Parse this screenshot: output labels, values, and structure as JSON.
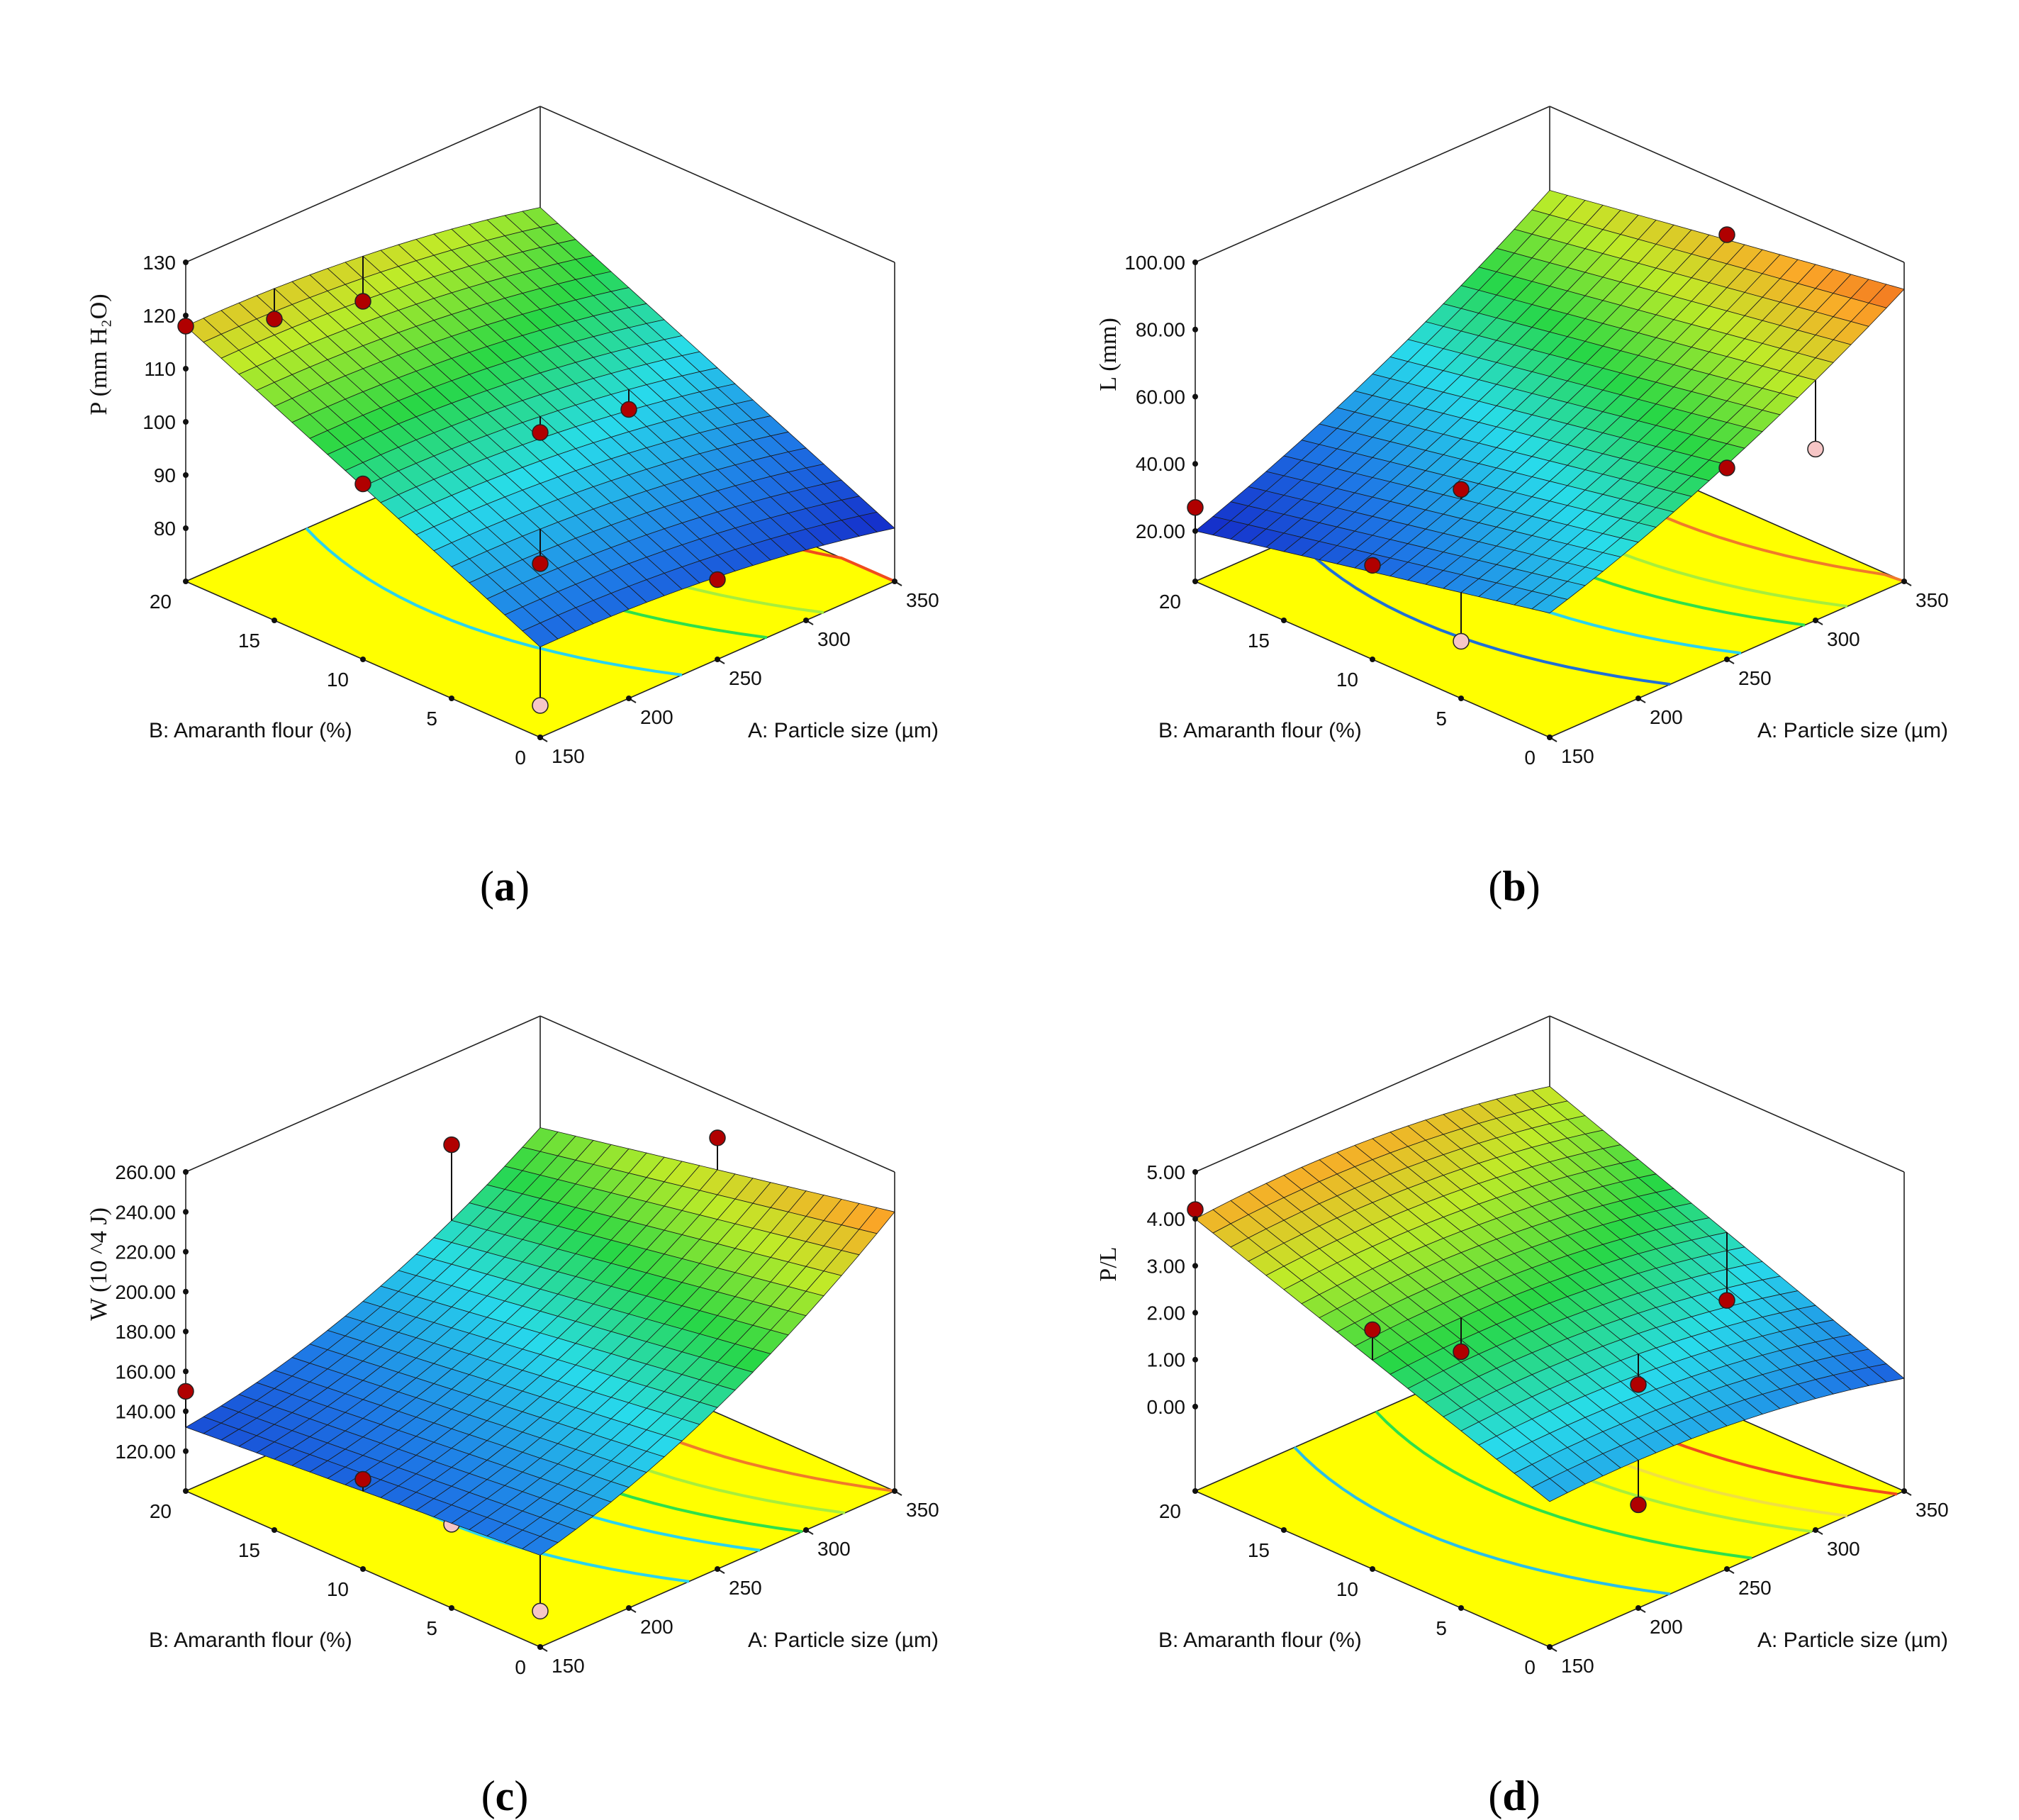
{
  "chart_data": [
    {
      "type": "surface3d",
      "panel": "a",
      "caption": "a",
      "zlabel": "P (mm H₂O)",
      "xlabel": "A: Particle size (µm)",
      "ylabel": "B: Amaranth flour (%)",
      "xlim": [
        150,
        350
      ],
      "ylim": [
        0,
        20
      ],
      "zlim": [
        80,
        130
      ],
      "x_ticks": [
        "150",
        "200",
        "250",
        "300",
        "350"
      ],
      "y_ticks": [
        "0",
        "5",
        "10",
        "15",
        "20"
      ],
      "z_ticks": [
        "80",
        "90",
        "100",
        "110",
        "120",
        "130"
      ],
      "z_floor": 70,
      "surface_corners": {
        "x150_y0": 87,
        "x350_y0": 80,
        "x150_y20": 118,
        "x350_y20": 111
      },
      "curvature": 2,
      "points": [
        {
          "x": 150,
          "y": 20,
          "z": 118,
          "above": true
        },
        {
          "x": 200,
          "y": 20,
          "z": 112,
          "above": true
        },
        {
          "x": 250,
          "y": 20,
          "z": 108,
          "above": true
        },
        {
          "x": 150,
          "y": 10,
          "z": 103,
          "above": true
        },
        {
          "x": 250,
          "y": 10,
          "z": 98,
          "above": true
        },
        {
          "x": 300,
          "y": 10,
          "z": 95,
          "above": true
        },
        {
          "x": 200,
          "y": 5,
          "z": 88,
          "above": true
        },
        {
          "x": 250,
          "y": 0,
          "z": 85,
          "above": true
        },
        {
          "x": 150,
          "y": 0,
          "z": 76,
          "above": false
        }
      ],
      "contours": [
        {
          "frac": 0.28,
          "color": "#29d4ee"
        },
        {
          "frac": 0.52,
          "color": "#2ee04a"
        },
        {
          "frac": 0.68,
          "color": "#a7ee3c"
        },
        {
          "frac": 0.95,
          "color": "#f04c1c"
        }
      ]
    },
    {
      "type": "surface3d",
      "panel": "b",
      "caption": "b",
      "zlabel": "L (mm)",
      "xlabel": "A: Particle size (µm)",
      "ylabel": "B: Amaranth flour (%)",
      "xlim": [
        150,
        350
      ],
      "ylim": [
        0,
        20
      ],
      "zlim": [
        20,
        100
      ],
      "x_ticks": [
        "150",
        "200",
        "250",
        "300",
        "350"
      ],
      "y_ticks": [
        "0",
        "5",
        "10",
        "15",
        "20"
      ],
      "z_ticks": [
        "20.00",
        "40.00",
        "60.00",
        "80.00",
        "100.00"
      ],
      "z_tick_values": [
        20,
        40,
        60,
        80,
        100
      ],
      "z_floor": 5,
      "surface_corners": {
        "x150_y0": 42,
        "x350_y0": 92,
        "x150_y20": 20,
        "x350_y20": 75
      },
      "curvature": -4,
      "points": [
        {
          "x": 150,
          "y": 20,
          "z": 27,
          "above": true
        },
        {
          "x": 150,
          "y": 10,
          "z": 33,
          "above": true
        },
        {
          "x": 200,
          "y": 10,
          "z": 44,
          "above": true
        },
        {
          "x": 250,
          "y": 0,
          "z": 62,
          "above": true
        },
        {
          "x": 350,
          "y": 10,
          "z": 85,
          "above": true
        },
        {
          "x": 150,
          "y": 5,
          "z": 22,
          "above": false
        },
        {
          "x": 250,
          "y": 5,
          "z": 42,
          "above": false
        },
        {
          "x": 300,
          "y": 0,
          "z": 56,
          "above": false
        }
      ],
      "contours": [
        {
          "frac": 0.22,
          "color": "#1f6fd6"
        },
        {
          "frac": 0.42,
          "color": "#29d4ee"
        },
        {
          "frac": 0.6,
          "color": "#2ee04a"
        },
        {
          "frac": 0.72,
          "color": "#a7ee3c"
        },
        {
          "frac": 0.9,
          "color": "#f07a2a"
        }
      ]
    },
    {
      "type": "surface3d",
      "panel": "c",
      "caption": "c",
      "zlabel": "W (10 ^4 J)",
      "xlabel": "A: Particle size (µm)",
      "ylabel": "B: Amaranth flour (%)",
      "xlim": [
        150,
        350
      ],
      "ylim": [
        0,
        20
      ],
      "zlim": [
        120,
        260
      ],
      "x_ticks": [
        "150",
        "200",
        "250",
        "300",
        "350"
      ],
      "y_ticks": [
        "0",
        "5",
        "10",
        "15",
        "20"
      ],
      "z_ticks": [
        "120.00",
        "140.00",
        "160.00",
        "180.00",
        "200.00",
        "220.00",
        "240.00",
        "260.00"
      ],
      "z_tick_values": [
        120,
        140,
        160,
        180,
        200,
        220,
        240,
        260
      ],
      "z_floor": 100,
      "surface_corners": {
        "x150_y0": 146,
        "x350_y0": 240,
        "x150_y20": 132,
        "x350_y20": 204
      },
      "curvature": -12,
      "points": [
        {
          "x": 150,
          "y": 20,
          "z": 150,
          "above": true
        },
        {
          "x": 150,
          "y": 10,
          "z": 145,
          "above": true
        },
        {
          "x": 300,
          "y": 20,
          "z": 215,
          "above": true
        },
        {
          "x": 350,
          "y": 10,
          "z": 238,
          "above": true
        },
        {
          "x": 150,
          "y": 5,
          "z": 142,
          "above": false
        },
        {
          "x": 150,
          "y": 0,
          "z": 118,
          "above": false
        }
      ],
      "contours": [
        {
          "frac": 0.3,
          "color": "#29d4ee"
        },
        {
          "frac": 0.5,
          "color": "#29d4ee"
        },
        {
          "frac": 0.62,
          "color": "#2ee04a"
        },
        {
          "frac": 0.74,
          "color": "#a7ee3c"
        },
        {
          "frac": 0.88,
          "color": "#f07a2a"
        }
      ]
    },
    {
      "type": "surface3d",
      "panel": "d",
      "caption": "d",
      "zlabel": "P/L",
      "xlabel": "A: Particle size (µm)",
      "ylabel": "B: Amaranth flour (%)",
      "xlim": [
        150,
        350
      ],
      "ylim": [
        0,
        20
      ],
      "zlim": [
        0,
        5
      ],
      "x_ticks": [
        "150",
        "200",
        "250",
        "300",
        "350"
      ],
      "y_ticks": [
        "0",
        "5",
        "10",
        "15",
        "20"
      ],
      "z_ticks": [
        "0.00",
        "1.00",
        "2.00",
        "3.00",
        "4.00",
        "5.00"
      ],
      "z_tick_values": [
        0,
        1,
        2,
        3,
        4,
        5
      ],
      "z_floor": -1.8,
      "surface_corners": {
        "x150_y0": 1.3,
        "x350_y0": 0.6,
        "x150_y20": 4.0,
        "x350_y20": 3.5
      },
      "curvature": 0.3,
      "points": [
        {
          "x": 150,
          "y": 20,
          "z": 4.2,
          "above": true
        },
        {
          "x": 150,
          "y": 10,
          "z": 3.3,
          "above": true
        },
        {
          "x": 200,
          "y": 10,
          "z": 2.0,
          "above": true
        },
        {
          "x": 250,
          "y": 5,
          "z": 1.3,
          "above": true
        },
        {
          "x": 350,
          "y": 10,
          "z": 0.6,
          "above": true
        },
        {
          "x": 200,
          "y": 0,
          "z": 0.4,
          "above": true
        }
      ],
      "contours": [
        {
          "frac": 0.22,
          "color": "#29bfe8"
        },
        {
          "frac": 0.45,
          "color": "#2ee04a"
        },
        {
          "frac": 0.62,
          "color": "#a7ee3c"
        },
        {
          "frac": 0.72,
          "color": "#f0e040"
        },
        {
          "frac": 0.86,
          "color": "#f04c1c"
        }
      ]
    }
  ]
}
